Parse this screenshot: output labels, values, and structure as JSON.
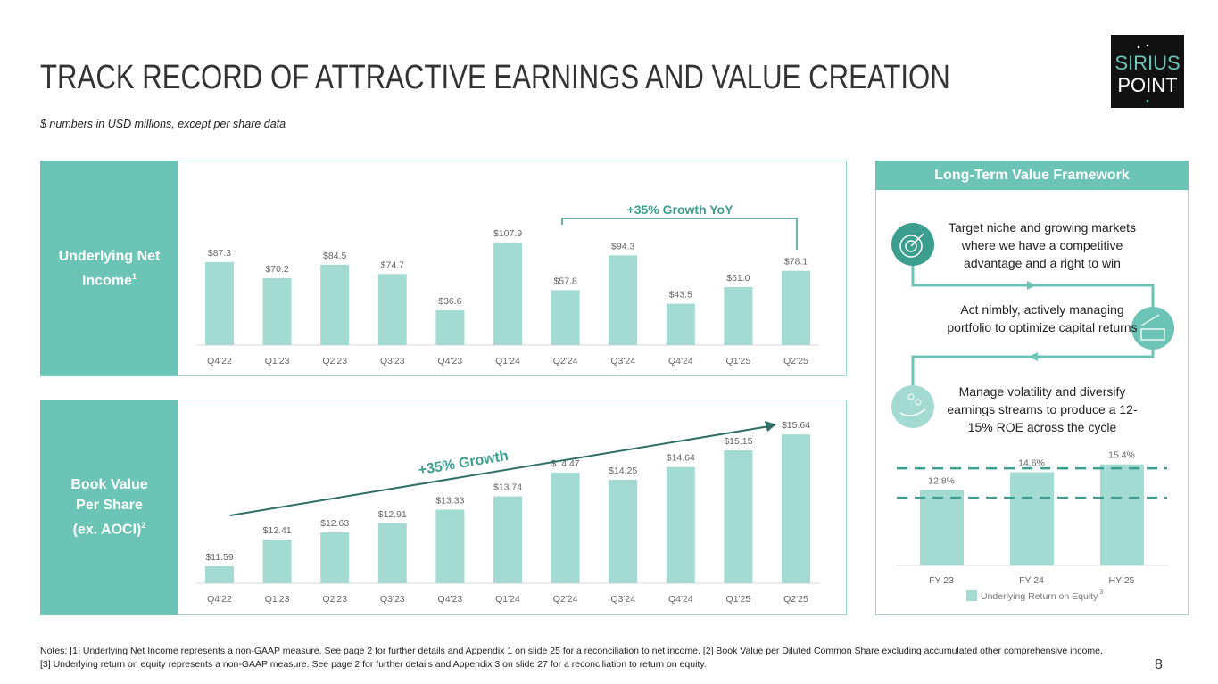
{
  "header": {
    "title": "TRACK RECORD OF ATTRACTIVE EARNINGS AND VALUE CREATION",
    "subtitle": "$ numbers in USD millions, except per share data",
    "logo_text": [
      "SIRIUS",
      "POINT"
    ]
  },
  "colors": {
    "teal": "#6cc4b6",
    "bar": "#a3dbd3",
    "dark_teal": "#3b9e8f",
    "arrow": "#2f6f66"
  },
  "chart_data": [
    {
      "type": "bar",
      "label": "Underlying Net Income",
      "label_sup": "1",
      "categories": [
        "Q4'22",
        "Q1'23",
        "Q2'23",
        "Q3'23",
        "Q4'23",
        "Q1'24",
        "Q2'24",
        "Q3'24",
        "Q4'24",
        "Q1'25",
        "Q2'25"
      ],
      "values": [
        87.3,
        70.2,
        84.5,
        74.7,
        36.6,
        107.9,
        57.8,
        94.3,
        43.5,
        61.0,
        78.1
      ],
      "data_labels": [
        "$87.3",
        "$70.2",
        "$84.5",
        "$74.7",
        "$36.6",
        "$107.9",
        "$57.8",
        "$94.3",
        "$43.5",
        "$61.0",
        "$78.1"
      ],
      "annotation": "+35% Growth YoY",
      "ylim": [
        0,
        115
      ]
    },
    {
      "type": "bar",
      "label": "Book Value Per Share (ex. AOCI)",
      "label_sup": "2",
      "categories": [
        "Q4'22",
        "Q1'23",
        "Q2'23",
        "Q3'23",
        "Q4'23",
        "Q1'24",
        "Q2'24",
        "Q3'24",
        "Q4'24",
        "Q1'25",
        "Q2'25"
      ],
      "values": [
        11.59,
        12.41,
        12.63,
        12.91,
        13.33,
        13.74,
        14.47,
        14.25,
        14.64,
        15.15,
        15.64
      ],
      "data_labels": [
        "$11.59",
        "$12.41",
        "$12.63",
        "$12.91",
        "$13.33",
        "$13.74",
        "$14.47",
        "$14.25",
        "$14.64",
        "$15.15",
        "$15.64"
      ],
      "annotation": "+35% Growth",
      "ylim": [
        11.07,
        16
      ]
    },
    {
      "type": "bar",
      "categories": [
        "FY 23",
        "FY 24",
        "HY 25"
      ],
      "values": [
        12.8,
        14.6,
        15.4
      ],
      "data_labels": [
        "12.8%",
        "14.6%",
        "15.4%"
      ],
      "legend": "Underlying Return on Equity",
      "legend_sup": "3",
      "target_band": [
        12,
        15
      ],
      "ylim": [
        5.1,
        16.5
      ],
      "legend_position": "bottom"
    }
  ],
  "framework": {
    "title": "Long-Term Value Framework",
    "steps": [
      {
        "icon": "target-icon",
        "text": "Target niche and growing markets where we have a competitive advantage and a right to win"
      },
      {
        "icon": "coins-growth-icon",
        "text": "Act nimbly, actively managing portfolio to optimize capital returns"
      },
      {
        "icon": "hand-coins-icon",
        "text": "Manage volatility and diversify earnings streams to produce a 12-15% ROE across the cycle"
      }
    ]
  },
  "notes": [
    "Notes: [1] Underlying Net Income represents a non-GAAP measure. See page 2 for further details and Appendix 1 on slide 25 for a reconciliation to net income. [2] Book Value per Diluted Common Share excluding accumulated other comprehensive income.",
    "[3] Underlying return on equity represents a non-GAAP measure. See page 2 for further details and Appendix 3 on slide 27 for a reconciliation to return on equity."
  ],
  "page_number": "8"
}
